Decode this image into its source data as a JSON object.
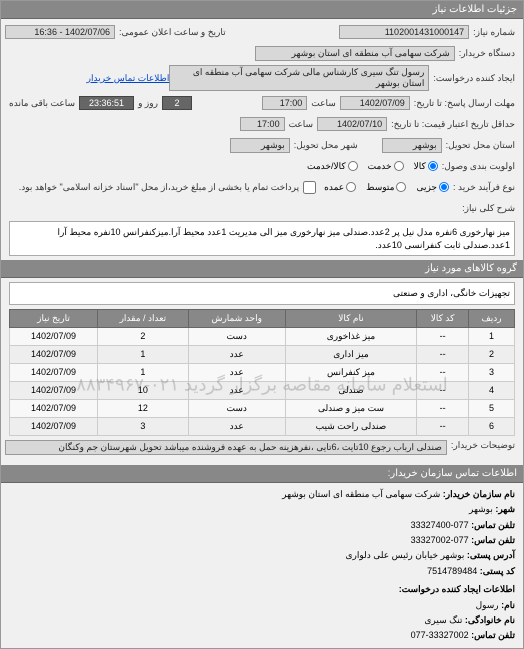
{
  "header": {
    "title": "جزئیات اطلاعات نیاز"
  },
  "form": {
    "need_number_label": "شماره نیاز:",
    "need_number": "1102001431000147",
    "announce_label": "تاریخ و ساعت اعلان عمومی:",
    "announce_value": "1402/07/06 - 16:36",
    "buyer_label": "دستگاه خریدار:",
    "buyer": "شرکت سهامی آب منطقه ای استان بوشهر",
    "requester_label": "ایجاد کننده درخواست:",
    "requester": "رسول تنگ سیری کارشناس مالی شرکت سهامی آب منطقه ای استان بوشهر",
    "contact_link": "اطلاعات تماس خریدار",
    "deadline_send_label": "مهلت ارسال پاسخ: تا تاریخ:",
    "deadline_send_date": "1402/07/09",
    "time_label": "ساعت",
    "deadline_send_time": "17:00",
    "remain_days": "2",
    "days_label": "روز و",
    "remain_time": "23:36:51",
    "remain_label": "ساعت باقی مانده",
    "validity_label": "حداقل تاریخ اعتبار قیمت: تا تاریخ:",
    "validity_date": "1402/07/10",
    "validity_time": "17:00",
    "delivery_state_label": "استان محل تحویل:",
    "delivery_state": "بوشهر",
    "delivery_city_label": "شهر محل تحویل:",
    "delivery_city": "بوشهر",
    "priority_label": "اولویت بندی وصول:",
    "priority_options": [
      "کالا",
      "خدمت",
      "کالا/خدمت"
    ],
    "priority_selected": 0,
    "payment_label": "نوع فرآیند خرید :",
    "payment_options": [
      "جزیی",
      "متوسط",
      "عمده"
    ],
    "payment_selected": 0,
    "payment_note": "پرداخت تمام یا بخشی از مبلغ خرید،از محل \"اسناد خزانه اسلامی\" خواهد بود.",
    "payment_checkbox": false,
    "desc_label": "شرح کلی نیاز:",
    "desc": "میز نهارخوری 6نفره مدل نیل پر 2عدد.صندلی میز نهارخوری میز الی مدیریت 1عدد محیط آرا.میزکنفرانس 10نفره محیط آرا 1عدد.صندلی ثابت کنفرانسی 10عدد.",
    "goods_group_label": "گروه کالاهای مورد نیاز",
    "goods_group": "تجهیزات خانگی، اداری و صنعتی"
  },
  "table": {
    "headers": [
      "ردیف",
      "کد کالا",
      "نام کالا",
      "واحد شمارش",
      "تعداد / مقدار",
      "تاریخ نیاز"
    ],
    "rows": [
      [
        "1",
        "--",
        "میز غذاخوری",
        "دست",
        "2",
        "1402/07/09"
      ],
      [
        "2",
        "--",
        "میز اداری",
        "عدد",
        "1",
        "1402/07/09"
      ],
      [
        "3",
        "--",
        "میز کنفرانس",
        "عدد",
        "1",
        "1402/07/09"
      ],
      [
        "4",
        "--",
        "صندلی",
        "عدد",
        "10",
        "1402/07/09"
      ],
      [
        "5",
        "--",
        "ست میز و صندلی",
        "دست",
        "12",
        "1402/07/09"
      ],
      [
        "6",
        "--",
        "صندلی راحت شیب",
        "عدد",
        "3",
        "1402/07/09"
      ]
    ],
    "watermark": "استعلام سامانه مقاصه برگزار گردید ۰۲۱-۸۸۳۴۹۶۷"
  },
  "buyer_note": {
    "label": "توضیحات خریدار:",
    "text": "صندلی ارباب رجوع 10تایت ،6تایی ،نفرهزینه حمل به عهده فروشنده میباشد تحویل شهرستان جم وکنگان"
  },
  "contact": {
    "header": "اطلاعات تماس سازمان خریدار:",
    "org_label": "نام سازمان خریدار:",
    "org": "شرکت سهامی آب منطقه ای استان بوشهر",
    "city_label": "شهر:",
    "city": "بوشهر",
    "phone_label": "تلفن تماس:",
    "phone": "077-33327400",
    "fax_label": "تلفن تماس:",
    "fax": "077-33327002",
    "address_label": "آدرس پستی:",
    "address": "بوشهر خیابان رئیس علی دلواری",
    "postal_label": "کد پستی:",
    "postal": "7514789484",
    "creator_header": "اطلاعات ایجاد کننده درخواست:",
    "name_label": "نام:",
    "name": "رسول",
    "lname_label": "نام خانوادگی:",
    "lname": "تنگ سیری",
    "cphone_label": "تلفن تماس:",
    "cphone": "33327002-077"
  }
}
